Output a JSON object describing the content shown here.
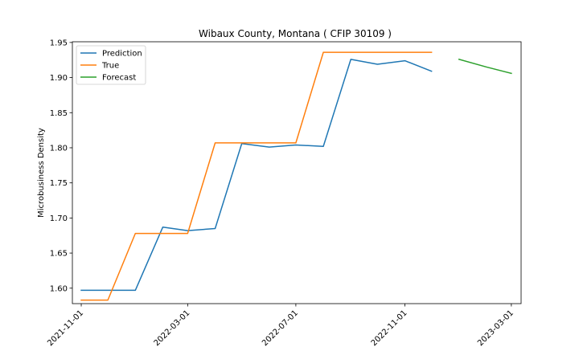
{
  "chart_data": {
    "type": "line",
    "title": "Wibaux County, Montana ( CFIP 30109 )",
    "xlabel": "",
    "ylabel": "Microbusiness Density",
    "ylim": [
      1.578,
      1.951
    ],
    "xlim": [
      "2021-10-22",
      "2023-03-12"
    ],
    "grid": false,
    "legend_position": "top-left",
    "x_ticks": [
      "2021-11-01",
      "2022-03-01",
      "2022-07-01",
      "2022-11-01",
      "2023-03-01"
    ],
    "y_ticks": [
      1.6,
      1.65,
      1.7,
      1.75,
      1.8,
      1.85,
      1.9,
      1.95
    ],
    "series": [
      {
        "name": "Prediction",
        "color": "#1f77b4",
        "x": [
          "2021-11-01",
          "2021-12-01",
          "2022-01-01",
          "2022-02-01",
          "2022-03-01",
          "2022-04-01",
          "2022-05-01",
          "2022-06-01",
          "2022-07-01",
          "2022-08-01",
          "2022-09-01",
          "2022-10-01",
          "2022-11-01",
          "2022-12-01"
        ],
        "values": [
          1.597,
          1.597,
          1.597,
          1.687,
          1.682,
          1.685,
          1.806,
          1.801,
          1.804,
          1.802,
          1.926,
          1.919,
          1.924,
          1.909
        ]
      },
      {
        "name": "True",
        "color": "#ff7f0e",
        "x": [
          "2021-11-01",
          "2021-12-01",
          "2022-01-01",
          "2022-02-01",
          "2022-03-01",
          "2022-04-01",
          "2022-05-01",
          "2022-06-01",
          "2022-07-01",
          "2022-08-01",
          "2022-09-01",
          "2022-10-01",
          "2022-11-01",
          "2022-12-01"
        ],
        "values": [
          1.583,
          1.583,
          1.678,
          1.678,
          1.678,
          1.807,
          1.807,
          1.807,
          1.807,
          1.936,
          1.936,
          1.936,
          1.936,
          1.936
        ]
      },
      {
        "name": "Forecast",
        "color": "#2ca02c",
        "x": [
          "2023-01-01",
          "2023-02-01",
          "2023-03-01"
        ],
        "values": [
          1.926,
          1.915,
          1.906
        ]
      }
    ]
  }
}
